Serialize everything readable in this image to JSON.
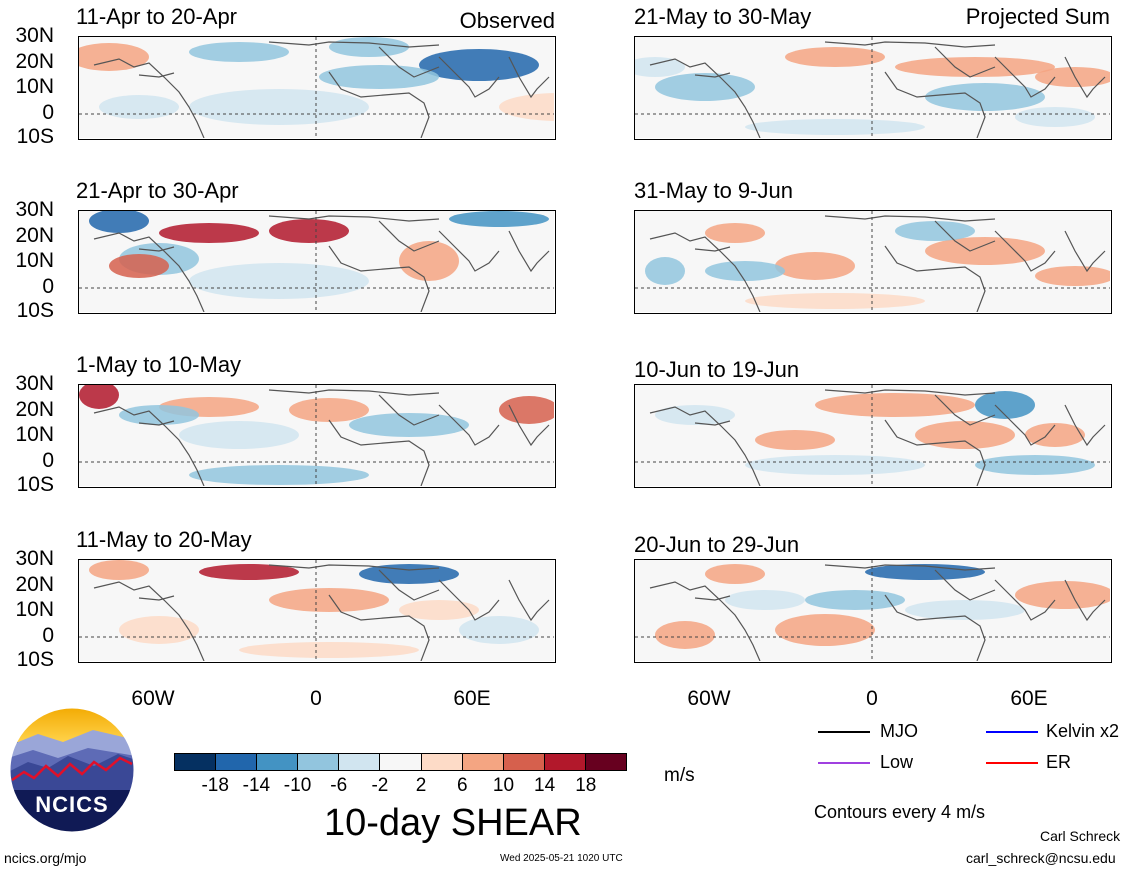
{
  "observed_label": "Observed",
  "projected_label": "Projected Sum",
  "panels_left": [
    {
      "title": "11-Apr to 20-Apr"
    },
    {
      "title": "21-Apr to 30-Apr"
    },
    {
      "title": "1-May to 10-May"
    },
    {
      "title": "11-May to 20-May"
    }
  ],
  "panels_right": [
    {
      "title": "21-May to 30-May"
    },
    {
      "title": "31-May to 9-Jun"
    },
    {
      "title": "10-Jun to 19-Jun"
    },
    {
      "title": "20-Jun to 29-Jun"
    }
  ],
  "lat_labels": [
    "30N",
    "20N",
    "10N",
    "0",
    "10S"
  ],
  "lon_labels": [
    "60W",
    "0",
    "60E"
  ],
  "colorbar": {
    "labels": [
      "-18",
      "-14",
      "-10",
      "-6",
      "-2",
      "2",
      "6",
      "10",
      "14",
      "18"
    ],
    "colors": [
      "#053061",
      "#2166ac",
      "#4393c3",
      "#92c5de",
      "#d1e5f0",
      "#f7f7f7",
      "#fddbc7",
      "#f4a582",
      "#d6604d",
      "#b2182b",
      "#67001f"
    ],
    "units": "m/s",
    "title": "10-day SHEAR"
  },
  "legend": {
    "mjo": "MJO",
    "kelvin": "Kelvin x2",
    "low": "Low",
    "er": "ER",
    "colors": {
      "mjo": "#000000",
      "kelvin": "#0000ff",
      "low": "#a040e0",
      "er": "#ff0000"
    }
  },
  "contours_note": "Contours every 4 m/s",
  "author": "Carl Schreck",
  "email": "carl_schreck@ncsu.edu",
  "site": "ncics.org/mjo",
  "timestamp": "Wed 2025-05-21 1020 UTC",
  "logo_text": "NCICS"
}
